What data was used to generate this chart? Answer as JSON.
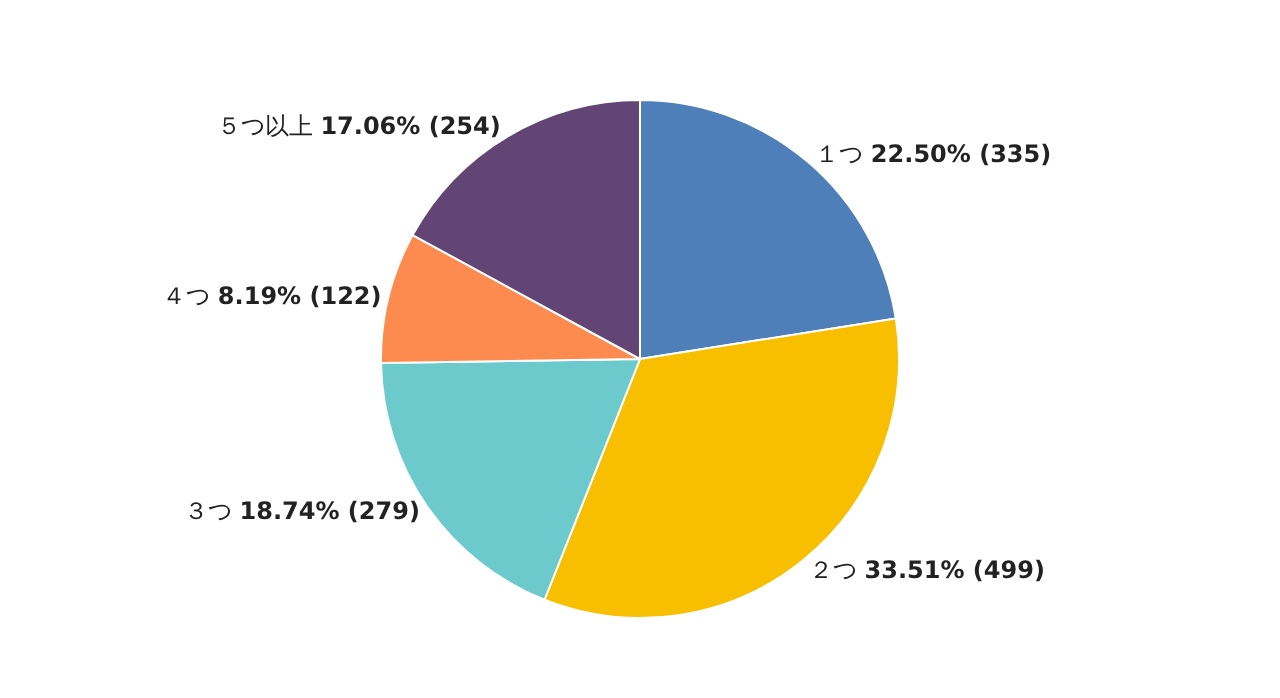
{
  "chart_data": {
    "type": "pie",
    "categories": [
      "１つ",
      "２つ",
      "３つ",
      "４つ",
      "５つ以上"
    ],
    "values": [
      335,
      499,
      279,
      122,
      254
    ],
    "value_labels": [
      "22.50% (335)",
      "33.51% (499)",
      "18.74% (279)",
      "8.19% (122)",
      "17.06% (254)"
    ],
    "colors": [
      "#4e7fb8",
      "#f8bf00",
      "#6ccacc",
      "#fd8a4e",
      "#634575"
    ],
    "legend": false
  }
}
